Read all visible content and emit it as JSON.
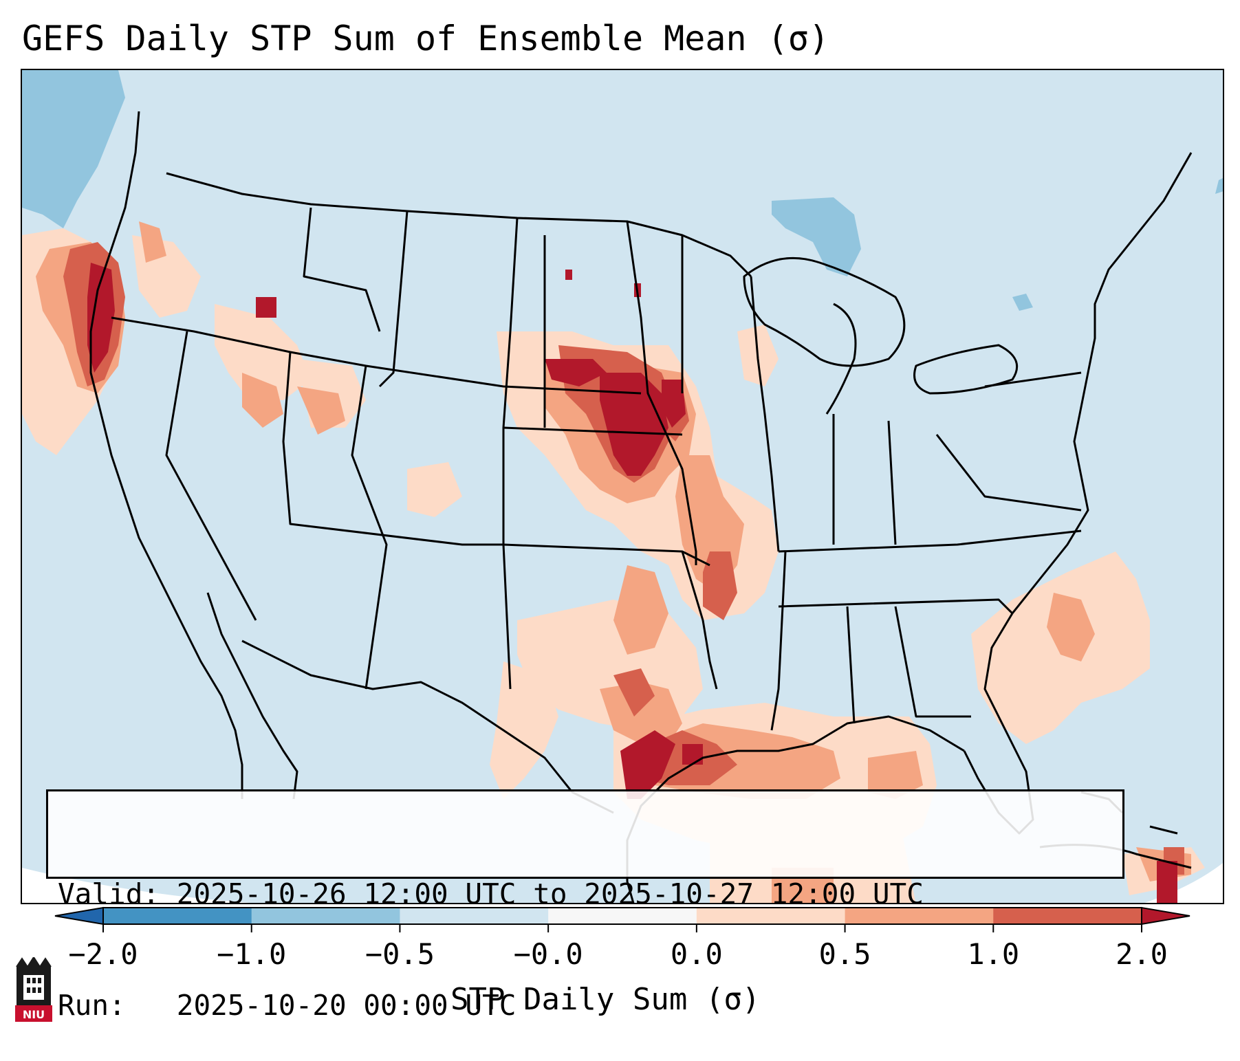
{
  "title": "GEFS Daily STP Sum of Ensemble Mean (σ)",
  "info": {
    "valid_line": "Valid: 2025-10-26 12:00 UTC to 2025-10-27 12:00 UTC",
    "run_line": "Run:   2025-10-20 00:00 UTC"
  },
  "colorbar": {
    "label": "STP Daily Sum (σ)",
    "ticks": [
      "−2.0",
      "−1.0",
      "−0.5",
      "−0.0",
      "0.0",
      "0.5",
      "1.0",
      "2.0"
    ],
    "bin_colors": [
      "#4393c3",
      "#92c5de",
      "#d1e5f0",
      "#f7f7f7",
      "#fddbc7",
      "#f4a582",
      "#d6604d"
    ],
    "under_color": "#2166ac",
    "over_color": "#b2182b",
    "extend": "both"
  },
  "colors": {
    "ocean": "#d1e5f0",
    "outline": "#000000"
  },
  "logo": {
    "text": "NIU",
    "name": "niu-logo"
  }
}
